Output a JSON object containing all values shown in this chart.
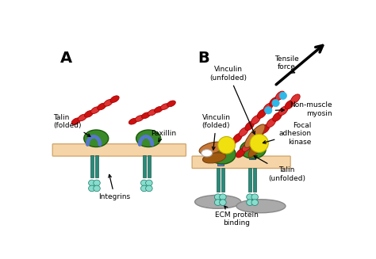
{
  "fig_width": 4.74,
  "fig_height": 3.27,
  "dpi": 100,
  "bg_color": "#ffffff",
  "labels": {
    "talin_folded": "Talin\n(folded)",
    "paxillin": "Paxillin",
    "integrins": "Integrins",
    "vinculin_folded": "Vinculin\n(folded)",
    "vinculin_unfolded": "Vinculin\n(unfolded)",
    "tensile_force": "Tensile\nforce",
    "non_muscle_myosin": "Non-muscle\nmyosin",
    "focal_adhesion_kinase": "Focal\nadhesion\nkinase",
    "talin_unfolded": "Talin\n(unfolded)",
    "ecm_protein": "ECM protein\nbinding"
  },
  "colors": {
    "actin_red": "#cc1111",
    "actin_dark": "#aa0000",
    "talin_green": "#3a8a2a",
    "membrane": "#f5d5a8",
    "membrane_edge": "#d4a870",
    "integrin_teal": "#2a8a7a",
    "integrin_light": "#88ddcc",
    "paxillin_blue": "#5577cc",
    "vinculin_brown": "#c87838",
    "vinculin_dark": "#a05a10",
    "yellow_fak": "#f0e010",
    "yellow_fak_edge": "#c0b000",
    "cyan_dot": "#30b8e8",
    "ecm_gray": "#aaaaaa",
    "ecm_gray_edge": "#888888",
    "talin_stem_blue": "#6688cc",
    "talin_stem_edge": "#334488"
  }
}
